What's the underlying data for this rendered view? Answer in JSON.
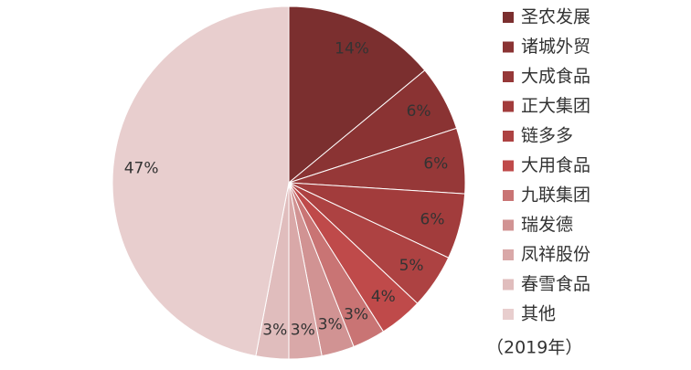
{
  "chart_data": {
    "type": "pie",
    "categories": [
      "圣农发展",
      "诸城外贸",
      "大成食品",
      "正大集团",
      "链多多",
      "大用食品",
      "九联集团",
      "瑞发德",
      "凤祥股份",
      "春雪食品",
      "其他"
    ],
    "values": [
      14,
      6,
      6,
      6,
      5,
      4,
      3,
      3,
      3,
      3,
      47
    ],
    "value_labels": [
      "14%",
      "6%",
      "6%",
      "6%",
      "5%",
      "4%",
      "3%",
      "3%",
      "3%",
      "3%",
      "47%"
    ],
    "colors": [
      "#7b2f2f",
      "#8a3333",
      "#963838",
      "#a23c3c",
      "#ad4242",
      "#bf4a4a",
      "#c97474",
      "#d19393",
      "#d9a8a8",
      "#e0bdbd",
      "#e8cece"
    ],
    "note": "（2019年）"
  }
}
